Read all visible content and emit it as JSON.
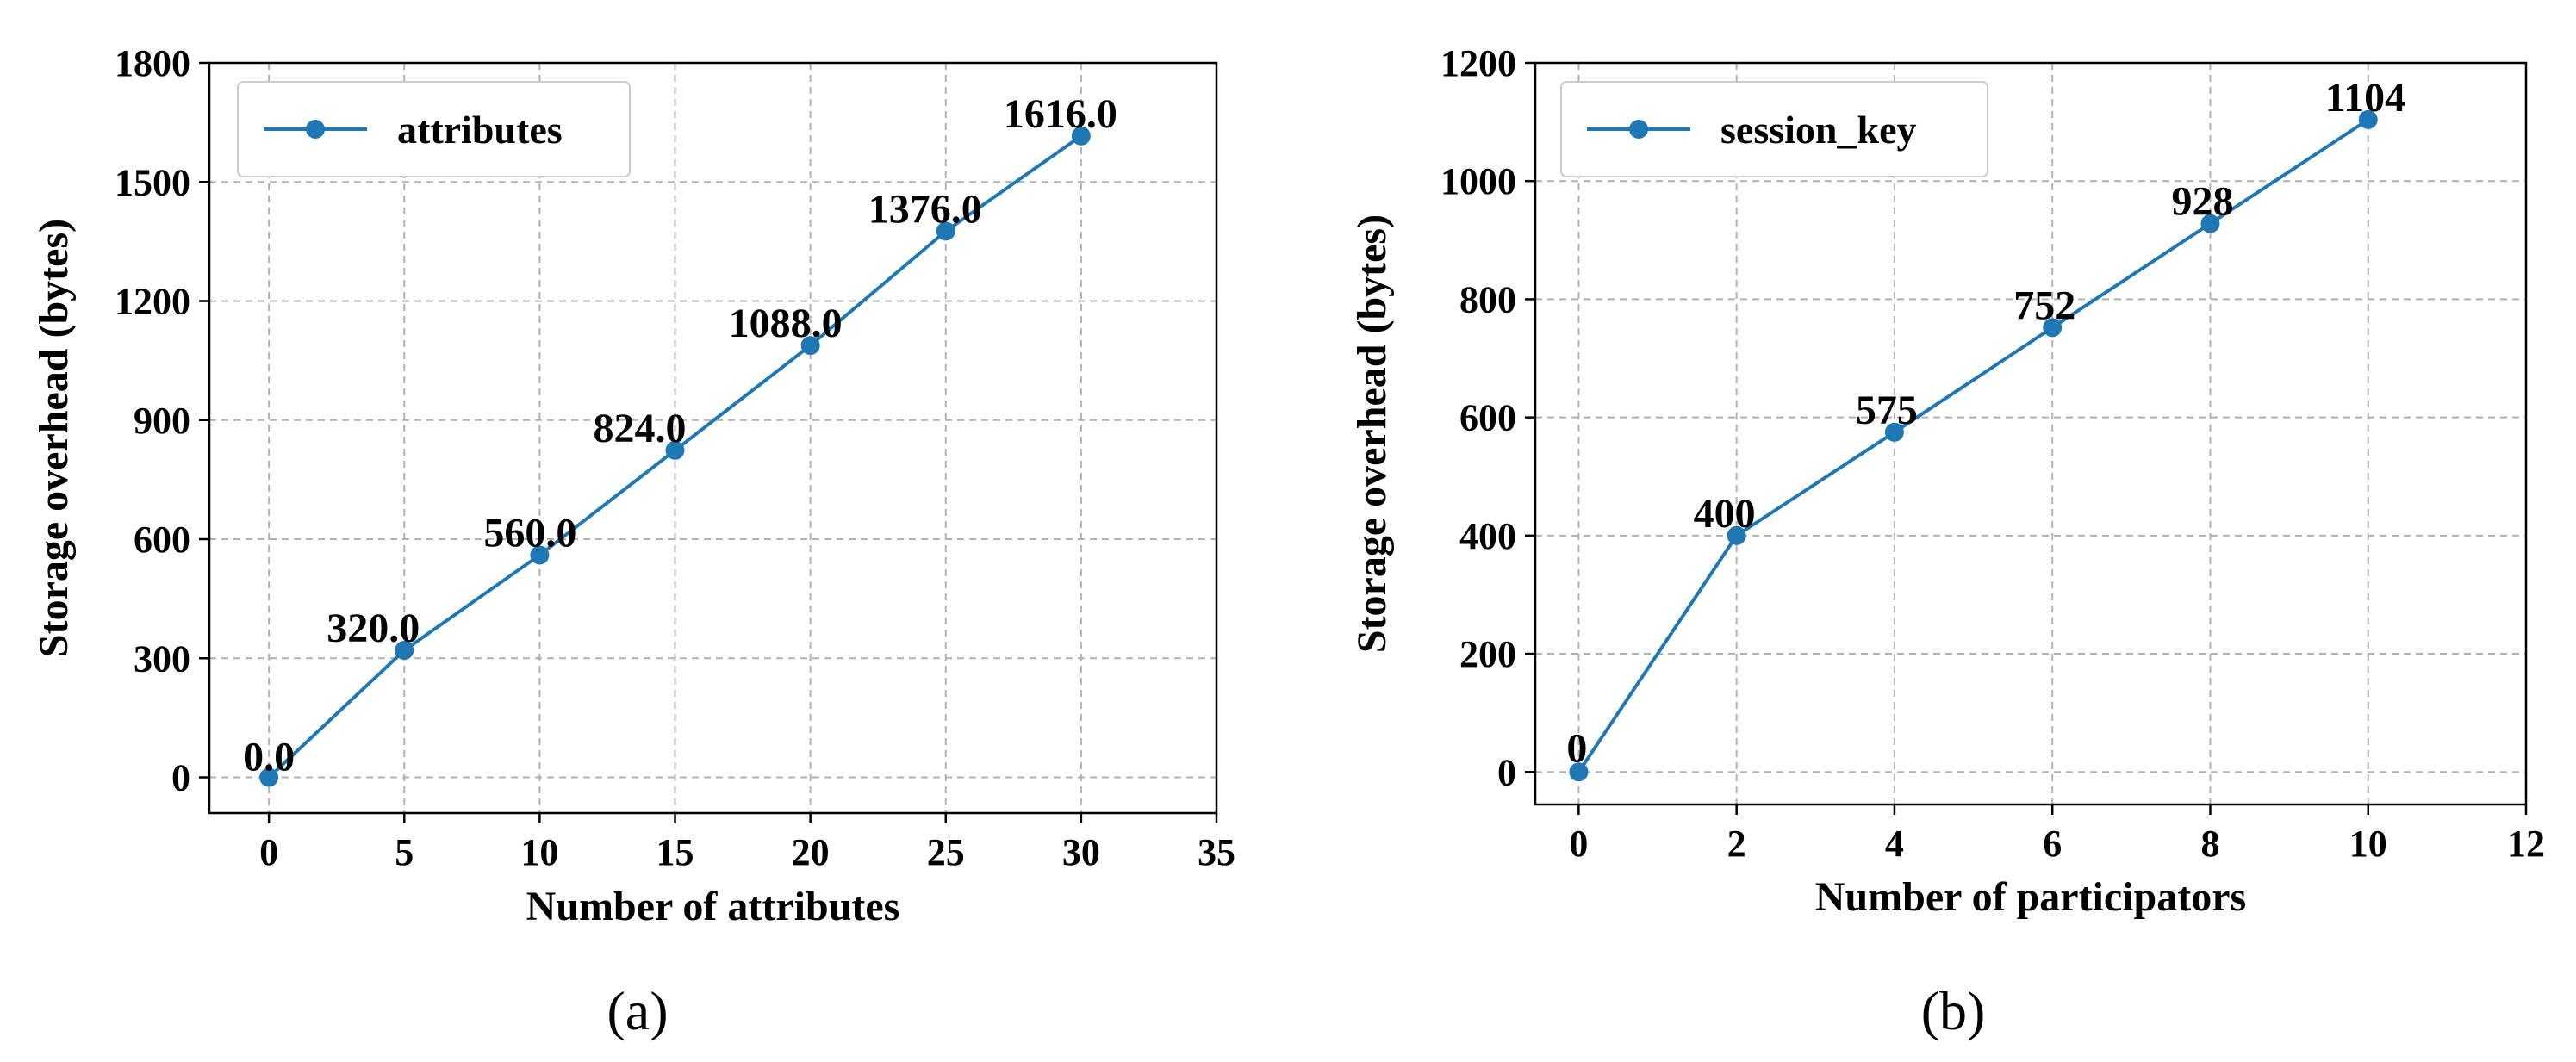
{
  "chart_data": [
    {
      "type": "line",
      "caption": "(a)",
      "title": "",
      "xlabel": "Number of attributes",
      "ylabel": "Storage overhead (bytes)",
      "xlim": [
        -2.2,
        35
      ],
      "ylim": [
        -90,
        1800
      ],
      "xticks": [
        0,
        5,
        10,
        15,
        20,
        25,
        30,
        35
      ],
      "yticks": [
        0,
        300,
        600,
        900,
        1200,
        1500,
        1800
      ],
      "grid": true,
      "legend_position": "top-left",
      "color": "#1f77b4",
      "series": [
        {
          "name": "attributes",
          "x": [
            0,
            5,
            10,
            15,
            20,
            25,
            30
          ],
          "values": [
            0,
            320,
            560,
            824,
            1088,
            1376,
            1616
          ],
          "labels": [
            "0.0",
            "320.0",
            "560.0",
            "824.0",
            "1088.0",
            "1376.0",
            "1616.0"
          ]
        }
      ]
    },
    {
      "type": "line",
      "caption": "(b)",
      "title": "",
      "xlabel": "Number of participators",
      "ylabel": "Storage overhead (bytes)",
      "xlim": [
        -0.55,
        12
      ],
      "ylim": [
        -55,
        1200
      ],
      "xticks": [
        0,
        2,
        4,
        6,
        8,
        10,
        12
      ],
      "yticks": [
        0,
        200,
        400,
        600,
        800,
        1000,
        1200
      ],
      "grid": true,
      "legend_position": "top-left",
      "color": "#1f77b4",
      "series": [
        {
          "name": "session_key",
          "x": [
            0,
            2,
            4,
            6,
            8,
            10
          ],
          "values": [
            0,
            400,
            575,
            752,
            928,
            1104
          ],
          "labels": [
            "0",
            "400",
            "575",
            "752",
            "928",
            "1104"
          ]
        }
      ]
    }
  ]
}
